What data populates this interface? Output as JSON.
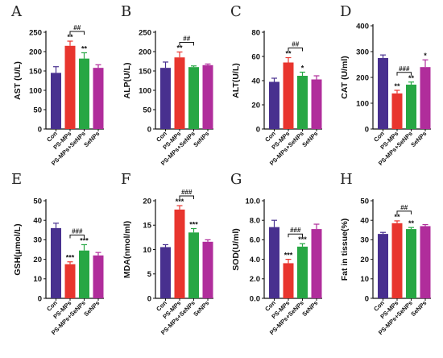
{
  "chart_data": [
    {
      "type": "bar",
      "letter": "A",
      "ylabel": "AST (U/L)",
      "ylim": [
        0,
        250
      ],
      "yticks": [
        "0",
        "50",
        "100",
        "150",
        "200",
        "250"
      ],
      "categories": [
        "Con",
        "PS-MPs",
        "PS-MPs+SeNPs",
        "SeNPs"
      ],
      "values": [
        145,
        215,
        182,
        158
      ],
      "errors": [
        16,
        12,
        15,
        8
      ],
      "stars": [
        "",
        "**",
        "**",
        ""
      ],
      "bracket": {
        "from": 1,
        "to": 2,
        "label": "##"
      }
    },
    {
      "type": "bar",
      "letter": "B",
      "ylabel": "ALP(U/L)",
      "ylim": [
        0,
        250
      ],
      "yticks": [
        "0",
        "50",
        "100",
        "150",
        "200",
        "250"
      ],
      "categories": [
        "Con",
        "PS-MPs",
        "PS-MPs+SeNPs",
        "SeNPs"
      ],
      "values": [
        158,
        185,
        160,
        165
      ],
      "errors": [
        15,
        14,
        3,
        3
      ],
      "stars": [
        "",
        "**",
        "",
        ""
      ],
      "bracket": {
        "from": 1,
        "to": 2,
        "label": "##"
      }
    },
    {
      "type": "bar",
      "letter": "C",
      "ylabel": "ALT(U/L)",
      "ylim": [
        0,
        80
      ],
      "yticks": [
        "0",
        "20",
        "40",
        "60",
        "80"
      ],
      "categories": [
        "Con",
        "PS-MPs",
        "PS-MPs+SeNPs",
        "SeNPs"
      ],
      "values": [
        39,
        55,
        44,
        41
      ],
      "errors": [
        3,
        4,
        3,
        3
      ],
      "stars": [
        "",
        "**",
        "*",
        ""
      ],
      "bracket": {
        "from": 1,
        "to": 2,
        "label": "##"
      }
    },
    {
      "type": "bar",
      "letter": "D",
      "ylabel": "CAT (U/ml)",
      "ylim": [
        0,
        400
      ],
      "yticks": [
        "0",
        "100",
        "200",
        "300",
        "400"
      ],
      "categories": [
        "Con",
        "PS-MPs",
        "PS-MPs+SeNPs",
        "SeNPs"
      ],
      "values": [
        275,
        138,
        172,
        240
      ],
      "errors": [
        12,
        12,
        10,
        28
      ],
      "stars": [
        "",
        "**",
        "**",
        "*"
      ],
      "bracket": {
        "from": 1,
        "to": 2,
        "label": "###"
      }
    },
    {
      "type": "bar",
      "letter": "E",
      "ylabel": "GSH(μmol/L)",
      "ylim": [
        0,
        50
      ],
      "yticks": [
        "0",
        "10",
        "20",
        "30",
        "40",
        "50"
      ],
      "categories": [
        "Con",
        "PS-MPs",
        "PS-MPs+SeNPs",
        "SeNPs"
      ],
      "values": [
        36,
        17.5,
        24.5,
        22
      ],
      "errors": [
        2.5,
        1.2,
        3,
        1.5
      ],
      "stars": [
        "",
        "***",
        "***",
        ""
      ],
      "bracket": {
        "from": 1,
        "to": 2,
        "label": "###"
      }
    },
    {
      "type": "bar",
      "letter": "F",
      "ylabel": "MDA(nmol/ml)",
      "ylim": [
        0,
        20
      ],
      "yticks": [
        "0",
        "5",
        "10",
        "15",
        "20"
      ],
      "categories": [
        "Con",
        "PS-MPs",
        "PS-MPs+SeNPs",
        "SeNPs"
      ],
      "values": [
        10.5,
        18.2,
        13.5,
        11.6
      ],
      "errors": [
        0.5,
        0.8,
        0.8,
        0.4
      ],
      "stars": [
        "",
        "***",
        "***",
        ""
      ],
      "bracket": {
        "from": 1,
        "to": 2,
        "label": "###"
      }
    },
    {
      "type": "bar",
      "letter": "G",
      "ylabel": "SOD(U/ml)",
      "ylim": [
        0,
        10
      ],
      "yticks": [
        "0.0",
        "2.0",
        "4.0",
        "6.0",
        "8.0",
        "10.0"
      ],
      "categories": [
        "Con",
        "PS-MPs",
        "PS-MPs+SeNPs",
        "SeNPs"
      ],
      "values": [
        7.3,
        3.6,
        5.3,
        7.1
      ],
      "errors": [
        0.7,
        0.4,
        0.3,
        0.5
      ],
      "stars": [
        "",
        "***",
        "***",
        ""
      ],
      "bracket": {
        "from": 1,
        "to": 2,
        "label": "###"
      }
    },
    {
      "type": "bar",
      "letter": "H",
      "ylabel": "Fat in tissue(%)",
      "ylim": [
        0,
        50
      ],
      "yticks": [
        "0",
        "10",
        "20",
        "30",
        "40",
        "50"
      ],
      "categories": [
        "Con",
        "PS-MPs",
        "PS-MPs+SeNPs",
        "SeNPs"
      ],
      "values": [
        33,
        38.5,
        35.5,
        37
      ],
      "errors": [
        0.8,
        1.2,
        0.8,
        0.8
      ],
      "stars": [
        "",
        "**",
        "**",
        ""
      ],
      "bracket": {
        "from": 1,
        "to": 2,
        "label": "##"
      }
    }
  ],
  "colors": {
    "Con": "#48308f",
    "PS-MPs": "#e8352e",
    "PS-MPs+SeNPs": "#27a744",
    "SeNPs": "#b02d9b",
    "axis": "#111111"
  }
}
